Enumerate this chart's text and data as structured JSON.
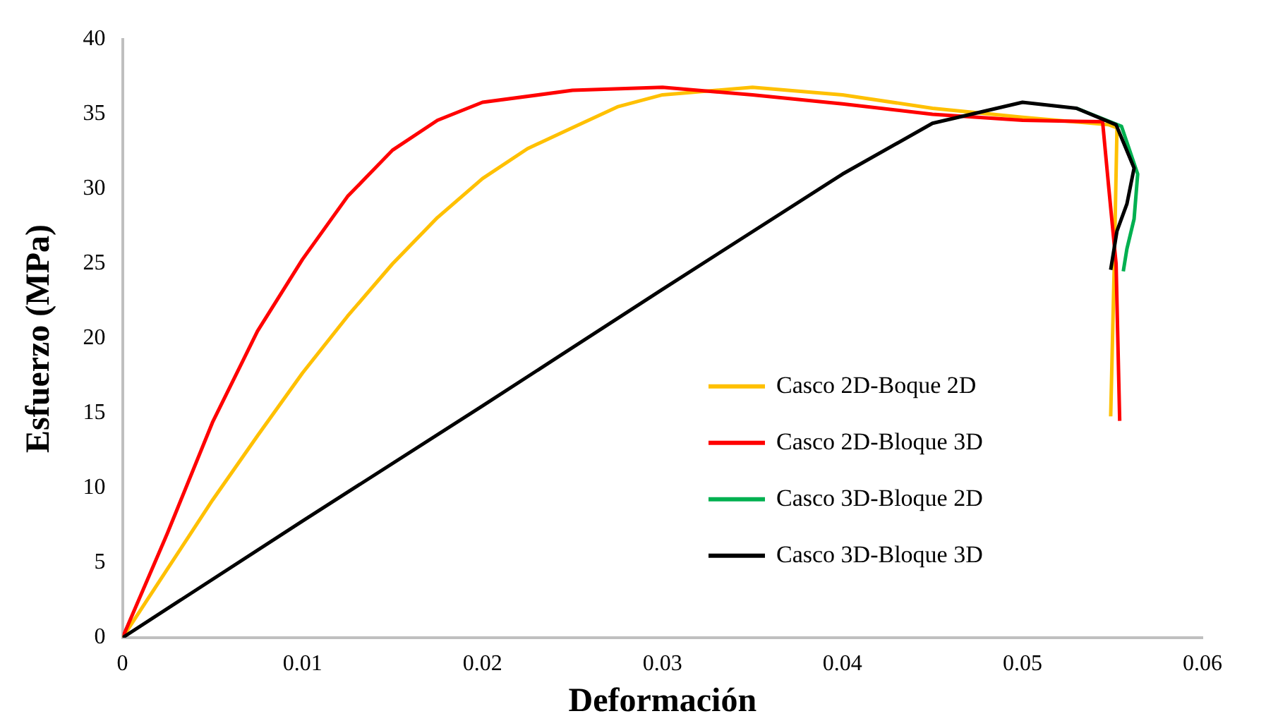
{
  "chart_data": {
    "type": "line",
    "xlabel": "Deformación",
    "ylabel": "Esfuerzo (MPa)",
    "xlim": [
      0,
      0.06
    ],
    "xticks": [
      {
        "value": 0,
        "label": "0"
      },
      0.01,
      0.02,
      0.03,
      0.04,
      0.05,
      0.06
    ],
    "ylim": [
      0,
      40
    ],
    "yticks": [
      0,
      5,
      10,
      15,
      20,
      25,
      30,
      35,
      40
    ],
    "grid": false,
    "legend": "right",
    "marker": "none",
    "line_style": "solid",
    "series": [
      {
        "name": "Casco 2D-Boque 2D",
        "color": "#ffc000",
        "x": [
          0,
          0.0025,
          0.005,
          0.0075,
          0.01,
          0.0125,
          0.015,
          0.0175,
          0.02,
          0.0225,
          0.025,
          0.0275,
          0.03,
          0.035,
          0.04,
          0.045,
          0.05,
          0.0548,
          0.05525,
          0.0551,
          0.0549
        ],
        "values": [
          0,
          4.6,
          9.2,
          13.5,
          17.7,
          21.5,
          25.0,
          28.1,
          30.7,
          32.7,
          34.1,
          35.5,
          36.3,
          36.8,
          36.3,
          35.4,
          34.8,
          34.3,
          34.1,
          25,
          14.8
        ]
      },
      {
        "name": "Casco 2D-Bloque 3D",
        "color": "#ff0000",
        "x": [
          0,
          0.0025,
          0.005,
          0.0075,
          0.01,
          0.0125,
          0.015,
          0.0175,
          0.02,
          0.025,
          0.03,
          0.035,
          0.04,
          0.045,
          0.05,
          0.05445,
          0.0548,
          0.0552,
          0.0554
        ],
        "values": [
          0,
          7,
          14.4,
          20.5,
          25.3,
          29.5,
          32.6,
          34.6,
          35.8,
          36.6,
          36.8,
          36.3,
          35.7,
          35.0,
          34.6,
          34.5,
          30,
          25,
          14.5
        ]
      },
      {
        "name": "Casco 3D-Bloque 2D",
        "color": "#00b050",
        "x": [
          0.053,
          0.0555,
          0.0564,
          0.0562,
          0.0558,
          0.0556
        ],
        "values": [
          35.4,
          34.2,
          31,
          28,
          26,
          24.5
        ]
      },
      {
        "name": "Casco 3D-Bloque 3D",
        "color": "#000000",
        "x": [
          0,
          0.01,
          0.02,
          0.03,
          0.04,
          0.045,
          0.05,
          0.053,
          0.0552,
          0.0562,
          0.0558,
          0.05525,
          0.0549
        ],
        "values": [
          0,
          7.8,
          15.5,
          23.3,
          31,
          34.4,
          35.8,
          35.4,
          34.3,
          31.4,
          29,
          27.2,
          24.6
        ]
      }
    ]
  }
}
